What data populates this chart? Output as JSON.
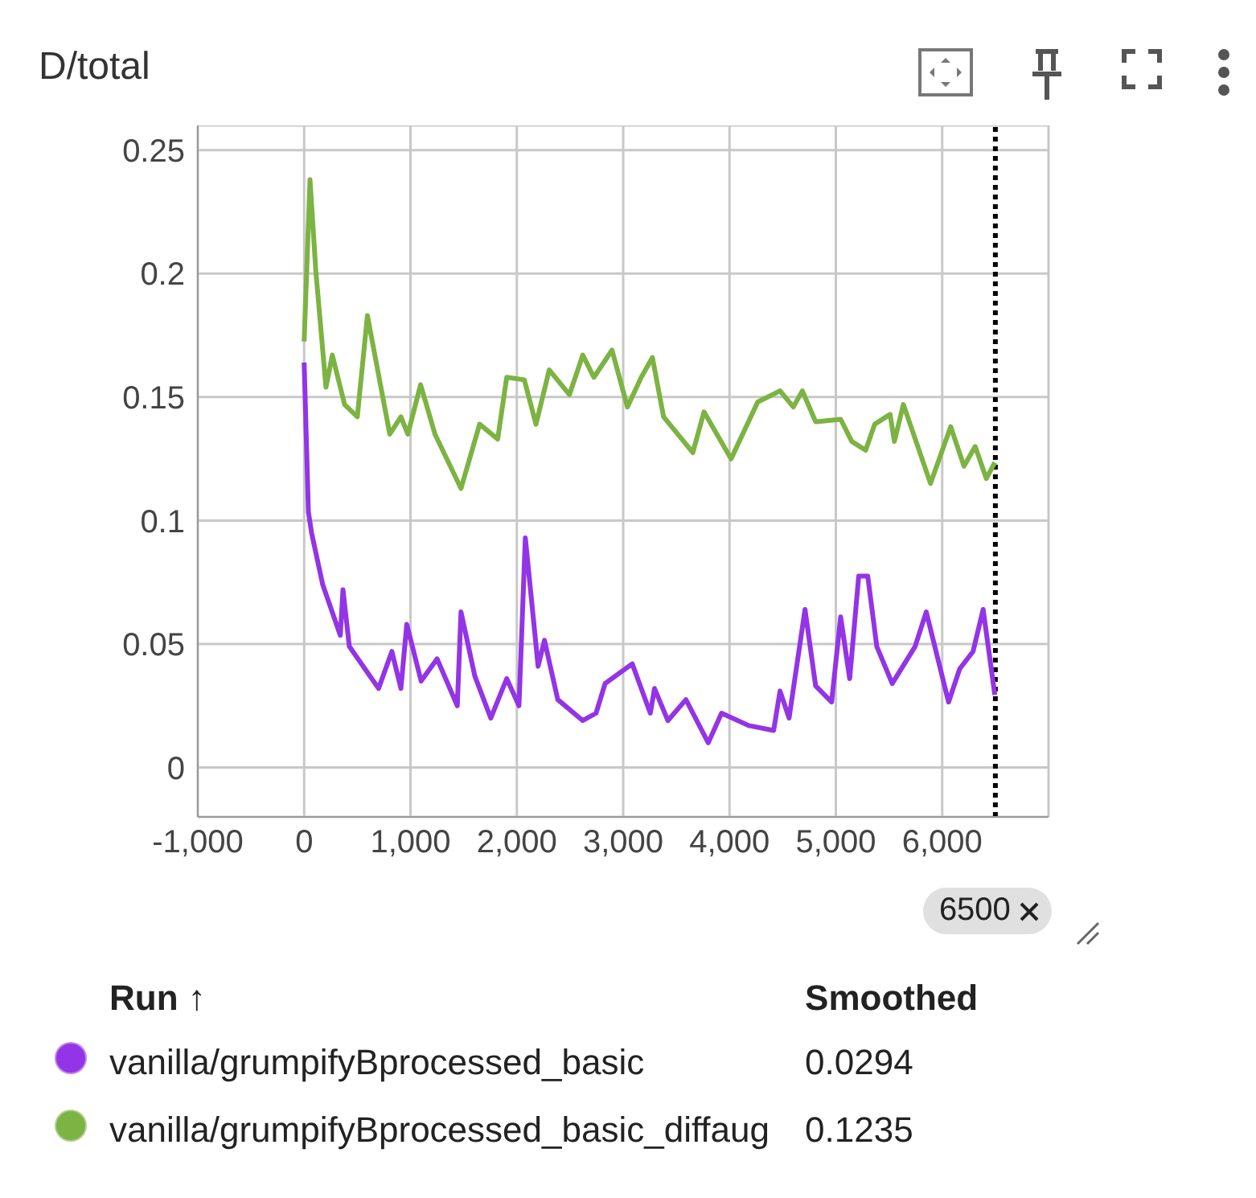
{
  "chart_data": {
    "type": "line",
    "title": "D/total",
    "xlim": [
      -1000,
      7000
    ],
    "xticks": [
      {
        "value": -1000,
        "label": "-1,000"
      },
      0,
      {
        "value": 1000,
        "label": "1,000"
      },
      {
        "value": 2000,
        "label": "2,000"
      },
      {
        "value": 3000,
        "label": "3,000"
      },
      {
        "value": 4000,
        "label": "4,000"
      },
      {
        "value": 5000,
        "label": "5,000"
      },
      {
        "value": 6000,
        "label": "6,000"
      }
    ],
    "ylim": [
      -0.02,
      0.26
    ],
    "yticks": [
      0,
      0.05,
      0.1,
      0.15,
      0.2,
      0.25
    ],
    "grid": true,
    "legend": "bottom",
    "marker": "none",
    "line_style": "solid",
    "ref_lines": [
      {
        "axis": "x",
        "value": 6500,
        "label": "6500",
        "color": "#000000",
        "line_style": "dotted"
      }
    ],
    "annotations": [
      "Run ↑",
      "Smoothed",
      "0.0294",
      "0.1235"
    ],
    "series": [
      {
        "name": "vanilla/grumpifyBprocessed_basic",
        "color": "#9334e6",
        "x": [
          0,
          40,
          70,
          175,
          340,
          365,
          425,
          700,
          825,
          910,
          965,
          1100,
          1250,
          1440,
          1475,
          1605,
          1755,
          1905,
          2020,
          2080,
          2200,
          2260,
          2385,
          2620,
          2745,
          2830,
          3085,
          3255,
          3295,
          3420,
          3590,
          3800,
          3925,
          4180,
          4415,
          4475,
          4560,
          4710,
          4810,
          4960,
          5045,
          5130,
          5215,
          5300,
          5385,
          5530,
          5745,
          5850,
          6060,
          6165,
          6290,
          6385,
          6495
        ],
        "values": [
          0.164,
          0.1035,
          0.095,
          0.074,
          0.0535,
          0.072,
          0.049,
          0.032,
          0.047,
          0.032,
          0.058,
          0.035,
          0.044,
          0.025,
          0.063,
          0.037,
          0.02,
          0.036,
          0.025,
          0.093,
          0.041,
          0.0515,
          0.0275,
          0.019,
          0.022,
          0.034,
          0.042,
          0.022,
          0.032,
          0.019,
          0.0275,
          0.01,
          0.022,
          0.017,
          0.015,
          0.031,
          0.02,
          0.064,
          0.033,
          0.0265,
          0.061,
          0.036,
          0.0775,
          0.0775,
          0.049,
          0.034,
          0.049,
          0.063,
          0.0265,
          0.04,
          0.047,
          0.064,
          0.0294
        ]
      },
      {
        "name": "vanilla/grumpifyBprocessed_basic_diffaug",
        "color": "#7cb342",
        "x": [
          0,
          55,
          110,
          205,
          265,
          380,
          500,
          595,
          805,
          910,
          975,
          1095,
          1230,
          1475,
          1650,
          1820,
          1905,
          2070,
          2180,
          2305,
          2495,
          2620,
          2725,
          2895,
          3040,
          3170,
          3275,
          3380,
          3655,
          3760,
          4015,
          4265,
          4475,
          4600,
          4685,
          4810,
          5045,
          5150,
          5280,
          5365,
          5510,
          5550,
          5635,
          5890,
          6080,
          6205,
          6310,
          6415,
          6495
        ],
        "values": [
          0.1725,
          0.238,
          0.201,
          0.154,
          0.167,
          0.147,
          0.142,
          0.183,
          0.135,
          0.142,
          0.135,
          0.155,
          0.135,
          0.113,
          0.139,
          0.133,
          0.158,
          0.157,
          0.139,
          0.161,
          0.151,
          0.167,
          0.158,
          0.169,
          0.146,
          0.158,
          0.166,
          0.142,
          0.1275,
          0.144,
          0.125,
          0.148,
          0.1525,
          0.146,
          0.1525,
          0.14,
          0.141,
          0.132,
          0.1285,
          0.139,
          0.143,
          0.132,
          0.147,
          0.115,
          0.138,
          0.122,
          0.13,
          0.117,
          0.1235
        ]
      }
    ]
  }
}
